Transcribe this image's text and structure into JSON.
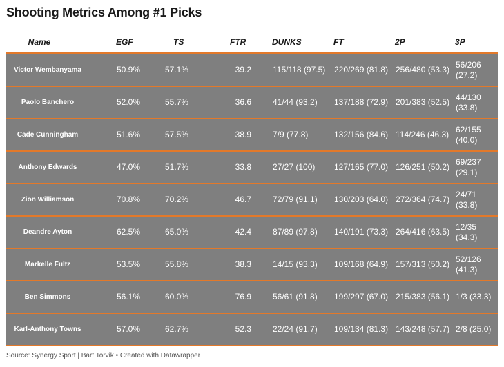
{
  "title": "Shooting Metrics Among #1 Picks",
  "source": "Source: Synergy Sport | Bart Torvik • Created with Datawrapper",
  "chart_data": {
    "type": "table",
    "title": "Shooting Metrics Among #1 Picks",
    "columns": [
      "Name",
      "EGF",
      "TS",
      "FTR",
      "DUNKS",
      "FT",
      "2P",
      "3P"
    ],
    "rows": [
      {
        "name": "Victor Wembanyama",
        "egf": "50.9%",
        "ts": "57.1%",
        "ftr": "39.2",
        "dunks": "115/118 (97.5)",
        "ft": "220/269 (81.8)",
        "twop": "256/480 (53.3)",
        "threep": "56/206 (27.2)"
      },
      {
        "name": "Paolo Banchero",
        "egf": "52.0%",
        "ts": "55.7%",
        "ftr": "36.6",
        "dunks": "41/44 (93.2)",
        "ft": "137/188 (72.9)",
        "twop": "201/383 (52.5)",
        "threep": "44/130 (33.8)"
      },
      {
        "name": "Cade Cunningham",
        "egf": "51.6%",
        "ts": "57.5%",
        "ftr": "38.9",
        "dunks": "7/9 (77.8)",
        "ft": "132/156 (84.6)",
        "twop": "114/246 (46.3)",
        "threep": "62/155 (40.0)"
      },
      {
        "name": "Anthony Edwards",
        "egf": "47.0%",
        "ts": "51.7%",
        "ftr": "33.8",
        "dunks": "27/27 (100)",
        "ft": "127/165 (77.0)",
        "twop": "126/251 (50.2)",
        "threep": "69/237 (29.1)"
      },
      {
        "name": "Zion Williamson",
        "egf": "70.8%",
        "ts": "70.2%",
        "ftr": "46.7",
        "dunks": "72/79 (91.1)",
        "ft": "130/203 (64.0)",
        "twop": "272/364 (74.7)",
        "threep": "24/71 (33.8)"
      },
      {
        "name": "Deandre Ayton",
        "egf": "62.5%",
        "ts": "65.0%",
        "ftr": "42.4",
        "dunks": "87/89 (97.8)",
        "ft": "140/191 (73.3)",
        "twop": "264/416 (63.5)",
        "threep": "12/35 (34.3)"
      },
      {
        "name": "Markelle Fultz",
        "egf": "53.5%",
        "ts": "55.8%",
        "ftr": "38.3",
        "dunks": "14/15 (93.3)",
        "ft": "109/168 (64.9)",
        "twop": "157/313 (50.2)",
        "threep": "52/126 (41.3)"
      },
      {
        "name": "Ben Simmons",
        "egf": "56.1%",
        "ts": "60.0%",
        "ftr": "76.9",
        "dunks": "56/61 (91.8)",
        "ft": "199/297 (67.0)",
        "twop": "215/383 (56.1)",
        "threep": "1/3 (33.3)"
      },
      {
        "name": "Karl-Anthony Towns",
        "egf": "57.0%",
        "ts": "62.7%",
        "ftr": "52.3",
        "dunks": "22/24 (91.7)",
        "ft": "109/134 (81.3)",
        "twop": "143/248 (57.7)",
        "threep": "2/8 (25.0)"
      }
    ]
  },
  "colors": {
    "row_bg": "#7f7f7f",
    "divider": "#e3792a",
    "row_text": "#ffffff"
  }
}
